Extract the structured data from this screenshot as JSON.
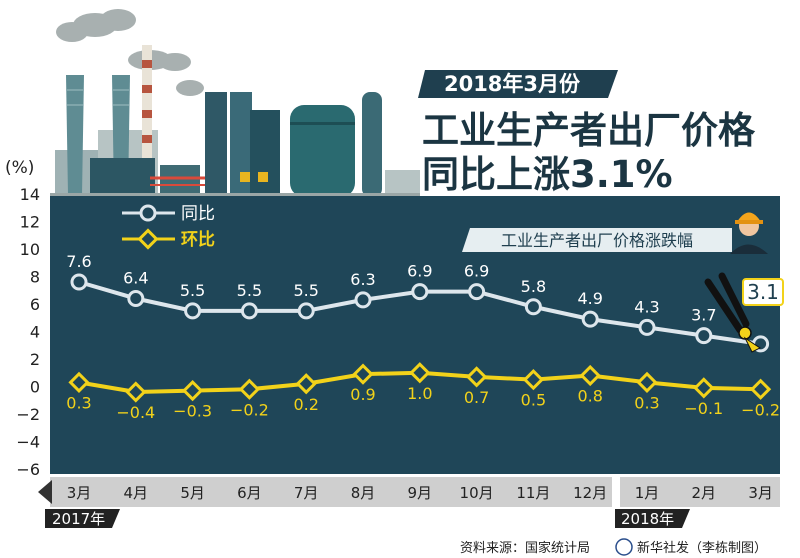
{
  "header": {
    "banner": "2018年3月份",
    "headline_line1": "工业生产者出厂价格",
    "headline_line2": "同比上涨3.1%",
    "subtitle_badge": "工业生产者出厂价格涨跌幅"
  },
  "source": {
    "text": "资料来源：国家统计局",
    "credit": "新华社发（李栋制图）"
  },
  "colors": {
    "panel": "#1f4658",
    "white_series": "#dde6ec",
    "yellow_series": "#f2d21a",
    "axis_strip": "#cfcfcf",
    "dark_text": "#222222"
  },
  "chart_data": {
    "type": "line",
    "yunit": "(%)",
    "ylim": [
      -6,
      14
    ],
    "yticks": [
      "14",
      "12",
      "10",
      "8",
      "6",
      "4",
      "2",
      "0",
      "−2",
      "−4",
      "−6"
    ],
    "categories": [
      "3月",
      "4月",
      "5月",
      "6月",
      "7月",
      "8月",
      "9月",
      "10月",
      "11月",
      "12月",
      "1月",
      "2月",
      "3月"
    ],
    "year_labels": [
      "2017年",
      "2018年"
    ],
    "series": [
      {
        "name": "同比",
        "values": [
          7.6,
          6.4,
          5.5,
          5.5,
          5.5,
          6.3,
          6.9,
          6.9,
          5.8,
          4.9,
          4.3,
          3.7,
          3.1
        ],
        "labels": [
          "7.6",
          "6.4",
          "5.5",
          "5.5",
          "5.5",
          "6.3",
          "6.9",
          "6.9",
          "5.8",
          "4.9",
          "4.3",
          "3.7",
          "3.1"
        ]
      },
      {
        "name": "环比",
        "values": [
          0.3,
          -0.4,
          -0.3,
          -0.2,
          0.2,
          0.9,
          1.0,
          0.7,
          0.5,
          0.8,
          0.3,
          -0.1,
          -0.2
        ],
        "labels": [
          "0.3",
          "−0.4",
          "−0.3",
          "−0.2",
          "0.2",
          "0.9",
          "1.0",
          "0.7",
          "0.5",
          "0.8",
          "0.3",
          "−0.1",
          "−0.2"
        ]
      }
    ],
    "grid": false,
    "legend": "top-left"
  }
}
